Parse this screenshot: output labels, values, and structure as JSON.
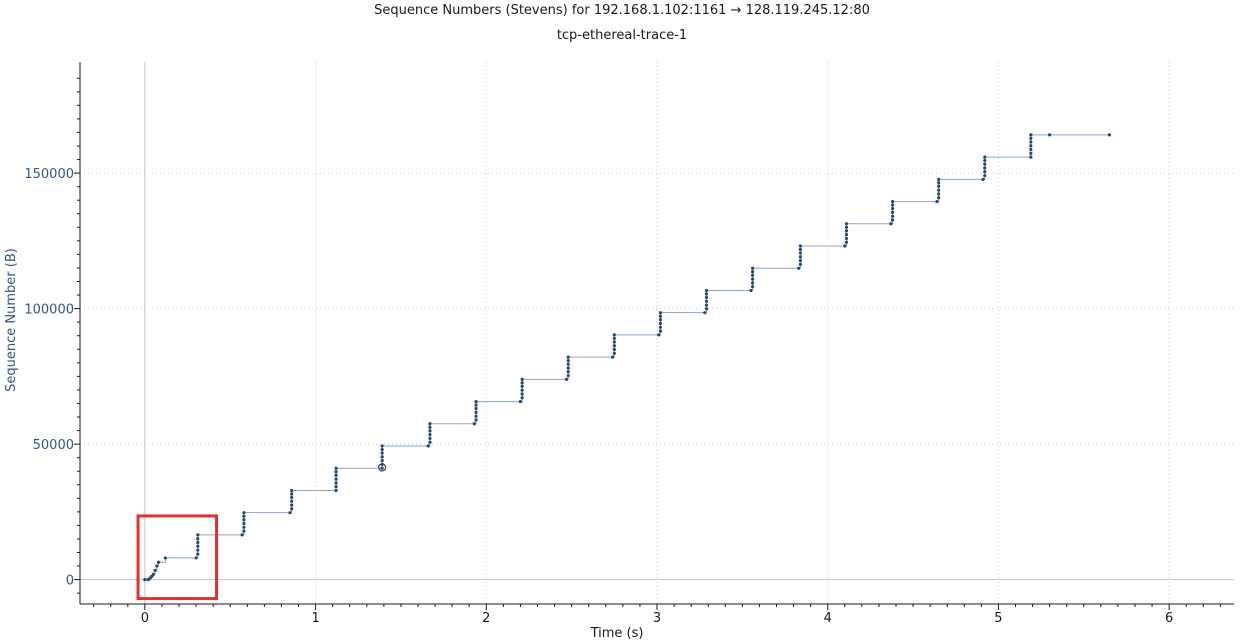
{
  "chart_data": {
    "type": "scatter",
    "title": "Sequence Numbers (Stevens) for 192.168.1.102:1161 → 128.119.245.12:80",
    "subtitle": "tcp-ethereal-trace-1",
    "xlabel": "Time (s)",
    "ylabel": "Sequence Number (B)",
    "xlim": [
      -0.38,
      6.38
    ],
    "ylim": [
      -9000,
      191000
    ],
    "x_ticks": [
      0,
      1,
      2,
      3,
      4,
      5,
      6
    ],
    "y_ticks": [
      0,
      50000,
      100000,
      150000
    ],
    "grid": true,
    "highlight_point": {
      "x": 1.39,
      "y": 41400
    },
    "annotation_box": {
      "x0": -0.04,
      "x1": 0.42,
      "y0": -7000,
      "y1": 23500
    },
    "series": [
      {
        "points": [
          {
            "x": 0.0,
            "y": 0
          },
          {
            "x": 0.02,
            "y": 0
          },
          {
            "x": 0.03,
            "y": 550
          },
          {
            "x": 0.04,
            "y": 1200
          },
          {
            "x": 0.05,
            "y": 2000
          },
          {
            "x": 0.06,
            "y": 3400
          },
          {
            "x": 0.07,
            "y": 5000
          },
          {
            "x": 0.08,
            "y": 6400
          },
          {
            "x": 0.12,
            "y": 8000
          },
          {
            "x": 0.3,
            "y": 8000
          },
          {
            "x": 0.31,
            "y": 9400
          },
          {
            "x": 0.31,
            "y": 10900
          },
          {
            "x": 0.31,
            "y": 12300
          },
          {
            "x": 0.31,
            "y": 13700
          },
          {
            "x": 0.31,
            "y": 15100
          },
          {
            "x": 0.31,
            "y": 16500
          },
          {
            "x": 0.57,
            "y": 16500
          },
          {
            "x": 0.58,
            "y": 17900
          },
          {
            "x": 0.58,
            "y": 19300
          },
          {
            "x": 0.58,
            "y": 20700
          },
          {
            "x": 0.58,
            "y": 22100
          },
          {
            "x": 0.58,
            "y": 23400
          },
          {
            "x": 0.58,
            "y": 24700
          },
          {
            "x": 0.85,
            "y": 24700
          },
          {
            "x": 0.86,
            "y": 26100
          },
          {
            "x": 0.86,
            "y": 27500
          },
          {
            "x": 0.86,
            "y": 28900
          },
          {
            "x": 0.86,
            "y": 30300
          },
          {
            "x": 0.86,
            "y": 31600
          },
          {
            "x": 0.86,
            "y": 32900
          },
          {
            "x": 1.12,
            "y": 32900
          },
          {
            "x": 1.12,
            "y": 34300
          },
          {
            "x": 1.12,
            "y": 35700
          },
          {
            "x": 1.12,
            "y": 37100
          },
          {
            "x": 1.12,
            "y": 38500
          },
          {
            "x": 1.12,
            "y": 39800
          },
          {
            "x": 1.12,
            "y": 41100
          },
          {
            "x": 1.39,
            "y": 41100
          },
          {
            "x": 1.39,
            "y": 42500
          },
          {
            "x": 1.39,
            "y": 43900
          },
          {
            "x": 1.39,
            "y": 45300
          },
          {
            "x": 1.39,
            "y": 46700
          },
          {
            "x": 1.39,
            "y": 48000
          },
          {
            "x": 1.39,
            "y": 49300
          },
          {
            "x": 1.66,
            "y": 49300
          },
          {
            "x": 1.67,
            "y": 50700
          },
          {
            "x": 1.67,
            "y": 52100
          },
          {
            "x": 1.67,
            "y": 53500
          },
          {
            "x": 1.67,
            "y": 54900
          },
          {
            "x": 1.67,
            "y": 56200
          },
          {
            "x": 1.67,
            "y": 57500
          },
          {
            "x": 1.93,
            "y": 57500
          },
          {
            "x": 1.94,
            "y": 58900
          },
          {
            "x": 1.94,
            "y": 60300
          },
          {
            "x": 1.94,
            "y": 61700
          },
          {
            "x": 1.94,
            "y": 63100
          },
          {
            "x": 1.94,
            "y": 64400
          },
          {
            "x": 1.94,
            "y": 65700
          },
          {
            "x": 2.2,
            "y": 65700
          },
          {
            "x": 2.21,
            "y": 67100
          },
          {
            "x": 2.21,
            "y": 68500
          },
          {
            "x": 2.21,
            "y": 69900
          },
          {
            "x": 2.21,
            "y": 71300
          },
          {
            "x": 2.21,
            "y": 72600
          },
          {
            "x": 2.21,
            "y": 73900
          },
          {
            "x": 2.47,
            "y": 73900
          },
          {
            "x": 2.48,
            "y": 75300
          },
          {
            "x": 2.48,
            "y": 76700
          },
          {
            "x": 2.48,
            "y": 78100
          },
          {
            "x": 2.48,
            "y": 79500
          },
          {
            "x": 2.48,
            "y": 80800
          },
          {
            "x": 2.48,
            "y": 82100
          },
          {
            "x": 2.74,
            "y": 82100
          },
          {
            "x": 2.75,
            "y": 83500
          },
          {
            "x": 2.75,
            "y": 84900
          },
          {
            "x": 2.75,
            "y": 86300
          },
          {
            "x": 2.75,
            "y": 87700
          },
          {
            "x": 2.75,
            "y": 89000
          },
          {
            "x": 2.75,
            "y": 90300
          },
          {
            "x": 3.01,
            "y": 90300
          },
          {
            "x": 3.02,
            "y": 91700
          },
          {
            "x": 3.02,
            "y": 93100
          },
          {
            "x": 3.02,
            "y": 94500
          },
          {
            "x": 3.02,
            "y": 95900
          },
          {
            "x": 3.02,
            "y": 97200
          },
          {
            "x": 3.02,
            "y": 98500
          },
          {
            "x": 3.28,
            "y": 98500
          },
          {
            "x": 3.29,
            "y": 99900
          },
          {
            "x": 3.29,
            "y": 101300
          },
          {
            "x": 3.29,
            "y": 102700
          },
          {
            "x": 3.29,
            "y": 104100
          },
          {
            "x": 3.29,
            "y": 105400
          },
          {
            "x": 3.29,
            "y": 106700
          },
          {
            "x": 3.55,
            "y": 106700
          },
          {
            "x": 3.56,
            "y": 108100
          },
          {
            "x": 3.56,
            "y": 109500
          },
          {
            "x": 3.56,
            "y": 110900
          },
          {
            "x": 3.56,
            "y": 112300
          },
          {
            "x": 3.56,
            "y": 113600
          },
          {
            "x": 3.56,
            "y": 114900
          },
          {
            "x": 3.83,
            "y": 114900
          },
          {
            "x": 3.84,
            "y": 116300
          },
          {
            "x": 3.84,
            "y": 117700
          },
          {
            "x": 3.84,
            "y": 119100
          },
          {
            "x": 3.84,
            "y": 120500
          },
          {
            "x": 3.84,
            "y": 121800
          },
          {
            "x": 3.84,
            "y": 123100
          },
          {
            "x": 4.1,
            "y": 123100
          },
          {
            "x": 4.11,
            "y": 124500
          },
          {
            "x": 4.11,
            "y": 125900
          },
          {
            "x": 4.11,
            "y": 127300
          },
          {
            "x": 4.11,
            "y": 128700
          },
          {
            "x": 4.11,
            "y": 130000
          },
          {
            "x": 4.11,
            "y": 131300
          },
          {
            "x": 4.37,
            "y": 131300
          },
          {
            "x": 4.38,
            "y": 132700
          },
          {
            "x": 4.38,
            "y": 134100
          },
          {
            "x": 4.38,
            "y": 135500
          },
          {
            "x": 4.38,
            "y": 136900
          },
          {
            "x": 4.38,
            "y": 138200
          },
          {
            "x": 4.38,
            "y": 139500
          },
          {
            "x": 4.64,
            "y": 139500
          },
          {
            "x": 4.65,
            "y": 140900
          },
          {
            "x": 4.65,
            "y": 142300
          },
          {
            "x": 4.65,
            "y": 143700
          },
          {
            "x": 4.65,
            "y": 145100
          },
          {
            "x": 4.65,
            "y": 146400
          },
          {
            "x": 4.65,
            "y": 147700
          },
          {
            "x": 4.91,
            "y": 147700
          },
          {
            "x": 4.92,
            "y": 149100
          },
          {
            "x": 4.92,
            "y": 150500
          },
          {
            "x": 4.92,
            "y": 151900
          },
          {
            "x": 4.92,
            "y": 153300
          },
          {
            "x": 4.92,
            "y": 154600
          },
          {
            "x": 4.92,
            "y": 155900
          },
          {
            "x": 5.19,
            "y": 155900
          },
          {
            "x": 5.19,
            "y": 157300
          },
          {
            "x": 5.19,
            "y": 158700
          },
          {
            "x": 5.19,
            "y": 160100
          },
          {
            "x": 5.19,
            "y": 161500
          },
          {
            "x": 5.19,
            "y": 162800
          },
          {
            "x": 5.19,
            "y": 164100
          },
          {
            "x": 5.3,
            "y": 164100
          },
          {
            "x": 5.65,
            "y": 164100
          }
        ]
      }
    ]
  },
  "colors": {
    "series": "#26486e",
    "line": "#8aa7c8",
    "highlight_box": "#e03030",
    "axis": "#1a1a1a",
    "ytick": "#33568a",
    "grid": "#c8c8c8"
  }
}
